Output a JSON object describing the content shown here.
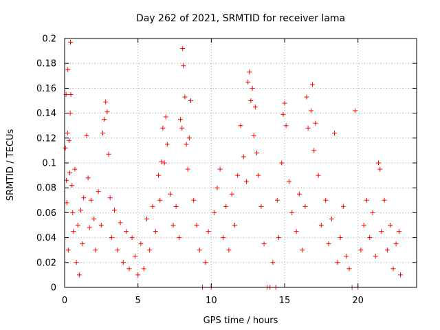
{
  "chart_data": {
    "type": "scatter",
    "title": "Day 262 of 2021, SRMTID for receiver lama",
    "xlabel": "GPS time / hours",
    "ylabel": "SRMTID / TECUs",
    "xlim": [
      0,
      24
    ],
    "ylim": [
      0,
      0.2
    ],
    "grid": true,
    "marker": "+",
    "color": "#ff0000",
    "xticks": [
      0,
      5,
      10,
      15,
      20
    ],
    "xtick_labels": [
      "0",
      "5",
      "10",
      "15",
      "20"
    ],
    "yticks": [
      0,
      0.02,
      0.04,
      0.06,
      0.08,
      0.1,
      0.12,
      0.14,
      0.16,
      0.18,
      0.2
    ],
    "ytick_labels": [
      "0",
      "0.02",
      "0.04",
      "0.06",
      "0.08",
      "0.1",
      "0.12",
      "0.14",
      "0.16",
      "0.18",
      "0.2"
    ],
    "series": [
      {
        "name": "SRMTID",
        "points": [
          [
            0.05,
            0.112
          ],
          [
            0.1,
            0.155
          ],
          [
            0.12,
            0.086
          ],
          [
            0.15,
            0.068
          ],
          [
            0.2,
            0.124
          ],
          [
            0.22,
            0.175
          ],
          [
            0.25,
            0.03
          ],
          [
            0.3,
            0.118
          ],
          [
            0.35,
            0.092
          ],
          [
            0.38,
            0.14
          ],
          [
            0.4,
            0.197
          ],
          [
            0.42,
            0.155
          ],
          [
            0.5,
            0.082
          ],
          [
            0.55,
            0.06
          ],
          [
            0.6,
            0.045
          ],
          [
            0.7,
            0.095
          ],
          [
            0.8,
            0.02
          ],
          [
            0.9,
            0.05
          ],
          [
            1.0,
            0.01
          ],
          [
            1.1,
            0.062
          ],
          [
            1.2,
            0.035
          ],
          [
            1.3,
            0.072
          ],
          [
            1.5,
            0.122
          ],
          [
            1.6,
            0.088
          ],
          [
            1.7,
            0.048
          ],
          [
            1.8,
            0.07
          ],
          [
            2.0,
            0.055
          ],
          [
            2.1,
            0.03
          ],
          [
            2.3,
            0.077
          ],
          [
            2.5,
            0.05
          ],
          [
            2.6,
            0.124
          ],
          [
            2.7,
            0.135
          ],
          [
            2.8,
            0.149
          ],
          [
            2.9,
            0.141
          ],
          [
            3.0,
            0.107
          ],
          [
            3.1,
            0.072
          ],
          [
            3.2,
            0.04
          ],
          [
            3.4,
            0.062
          ],
          [
            3.6,
            0.03
          ],
          [
            3.8,
            0.052
          ],
          [
            4.0,
            0.02
          ],
          [
            4.2,
            0.045
          ],
          [
            4.4,
            0.015
          ],
          [
            4.6,
            0.04
          ],
          [
            4.8,
            0.025
          ],
          [
            5.0,
            0.01
          ],
          [
            5.2,
            0.035
          ],
          [
            5.4,
            0.015
          ],
          [
            5.6,
            0.055
          ],
          [
            5.8,
            0.03
          ],
          [
            6.0,
            0.065
          ],
          [
            6.2,
            0.045
          ],
          [
            6.4,
            0.09
          ],
          [
            6.5,
            0.07
          ],
          [
            6.6,
            0.101
          ],
          [
            6.7,
            0.128
          ],
          [
            6.8,
            0.1
          ],
          [
            6.9,
            0.137
          ],
          [
            7.0,
            0.115
          ],
          [
            7.2,
            0.075
          ],
          [
            7.4,
            0.05
          ],
          [
            7.6,
            0.065
          ],
          [
            7.8,
            0.04
          ],
          [
            7.9,
            0.135
          ],
          [
            8.0,
            0.128
          ],
          [
            8.05,
            0.192
          ],
          [
            8.1,
            0.178
          ],
          [
            8.2,
            0.153
          ],
          [
            8.3,
            0.115
          ],
          [
            8.4,
            0.095
          ],
          [
            8.5,
            0.12
          ],
          [
            8.6,
            0.15
          ],
          [
            8.8,
            0.07
          ],
          [
            9.0,
            0.05
          ],
          [
            9.2,
            0.03
          ],
          [
            9.4,
            0.0
          ],
          [
            9.6,
            0.02
          ],
          [
            9.8,
            0.045
          ],
          [
            10.0,
            0.0
          ],
          [
            10.2,
            0.06
          ],
          [
            10.4,
            0.08
          ],
          [
            10.6,
            0.095
          ],
          [
            10.8,
            0.04
          ],
          [
            11.0,
            0.065
          ],
          [
            11.2,
            0.03
          ],
          [
            11.4,
            0.075
          ],
          [
            11.6,
            0.05
          ],
          [
            11.8,
            0.09
          ],
          [
            12.0,
            0.13
          ],
          [
            12.2,
            0.105
          ],
          [
            12.4,
            0.085
          ],
          [
            12.5,
            0.165
          ],
          [
            12.6,
            0.173
          ],
          [
            12.7,
            0.15
          ],
          [
            12.8,
            0.16
          ],
          [
            12.9,
            0.122
          ],
          [
            13.0,
            0.145
          ],
          [
            13.1,
            0.108
          ],
          [
            13.2,
            0.09
          ],
          [
            13.4,
            0.065
          ],
          [
            13.6,
            0.035
          ],
          [
            13.8,
            0.0
          ],
          [
            14.0,
            0.0
          ],
          [
            14.2,
            0.02
          ],
          [
            14.4,
            0.0
          ],
          [
            14.5,
            0.07
          ],
          [
            14.6,
            0.04
          ],
          [
            14.8,
            0.1
          ],
          [
            14.9,
            0.139
          ],
          [
            15.0,
            0.148
          ],
          [
            15.1,
            0.13
          ],
          [
            15.3,
            0.085
          ],
          [
            15.5,
            0.06
          ],
          [
            15.8,
            0.045
          ],
          [
            16.0,
            0.075
          ],
          [
            16.2,
            0.03
          ],
          [
            16.4,
            0.065
          ],
          [
            16.5,
            0.153
          ],
          [
            16.6,
            0.128
          ],
          [
            16.8,
            0.142
          ],
          [
            16.9,
            0.163
          ],
          [
            17.0,
            0.11
          ],
          [
            17.1,
            0.132
          ],
          [
            17.3,
            0.09
          ],
          [
            17.5,
            0.05
          ],
          [
            17.8,
            0.07
          ],
          [
            18.0,
            0.035
          ],
          [
            18.2,
            0.055
          ],
          [
            18.4,
            0.124
          ],
          [
            18.6,
            0.02
          ],
          [
            18.8,
            0.04
          ],
          [
            19.0,
            0.065
          ],
          [
            19.2,
            0.025
          ],
          [
            19.4,
            0.015
          ],
          [
            19.6,
            0.0
          ],
          [
            19.8,
            0.142
          ],
          [
            20.0,
            0.0
          ],
          [
            20.2,
            0.03
          ],
          [
            20.4,
            0.05
          ],
          [
            20.6,
            0.07
          ],
          [
            20.8,
            0.04
          ],
          [
            21.0,
            0.06
          ],
          [
            21.2,
            0.025
          ],
          [
            21.4,
            0.1
          ],
          [
            21.5,
            0.095
          ],
          [
            21.6,
            0.045
          ],
          [
            21.8,
            0.07
          ],
          [
            22.0,
            0.03
          ],
          [
            22.2,
            0.05
          ],
          [
            22.4,
            0.015
          ],
          [
            22.6,
            0.035
          ],
          [
            22.8,
            0.045
          ],
          [
            22.9,
            0.01
          ]
        ]
      }
    ]
  }
}
